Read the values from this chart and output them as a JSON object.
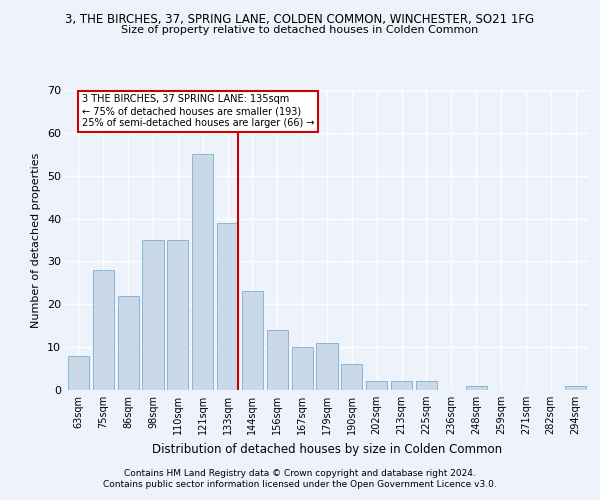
{
  "title": "3, THE BIRCHES, 37, SPRING LANE, COLDEN COMMON, WINCHESTER, SO21 1FG",
  "subtitle": "Size of property relative to detached houses in Colden Common",
  "xlabel": "Distribution of detached houses by size in Colden Common",
  "ylabel": "Number of detached properties",
  "categories": [
    "63sqm",
    "75sqm",
    "86sqm",
    "98sqm",
    "110sqm",
    "121sqm",
    "133sqm",
    "144sqm",
    "156sqm",
    "167sqm",
    "179sqm",
    "190sqm",
    "202sqm",
    "213sqm",
    "225sqm",
    "236sqm",
    "248sqm",
    "259sqm",
    "271sqm",
    "282sqm",
    "294sqm"
  ],
  "values": [
    8,
    28,
    22,
    35,
    35,
    55,
    39,
    23,
    14,
    10,
    11,
    6,
    2,
    2,
    2,
    0,
    1,
    0,
    0,
    0,
    1
  ],
  "bar_color": "#c9d9e8",
  "bar_edge_color": "#7bafd4",
  "highlight_index": 6,
  "highlight_line_color": "#cc0000",
  "ylim": [
    0,
    70
  ],
  "yticks": [
    0,
    10,
    20,
    30,
    40,
    50,
    60,
    70
  ],
  "annotation_line1": "3 THE BIRCHES, 37 SPRING LANE: 135sqm",
  "annotation_line2": "← 75% of detached houses are smaller (193)",
  "annotation_line3": "25% of semi-detached houses are larger (66) →",
  "annotation_box_color": "#ffffff",
  "annotation_box_edge": "#cc0000",
  "footer1": "Contains HM Land Registry data © Crown copyright and database right 2024.",
  "footer2": "Contains public sector information licensed under the Open Government Licence v3.0.",
  "bg_color": "#eef2fa",
  "grid_color": "#ffffff"
}
